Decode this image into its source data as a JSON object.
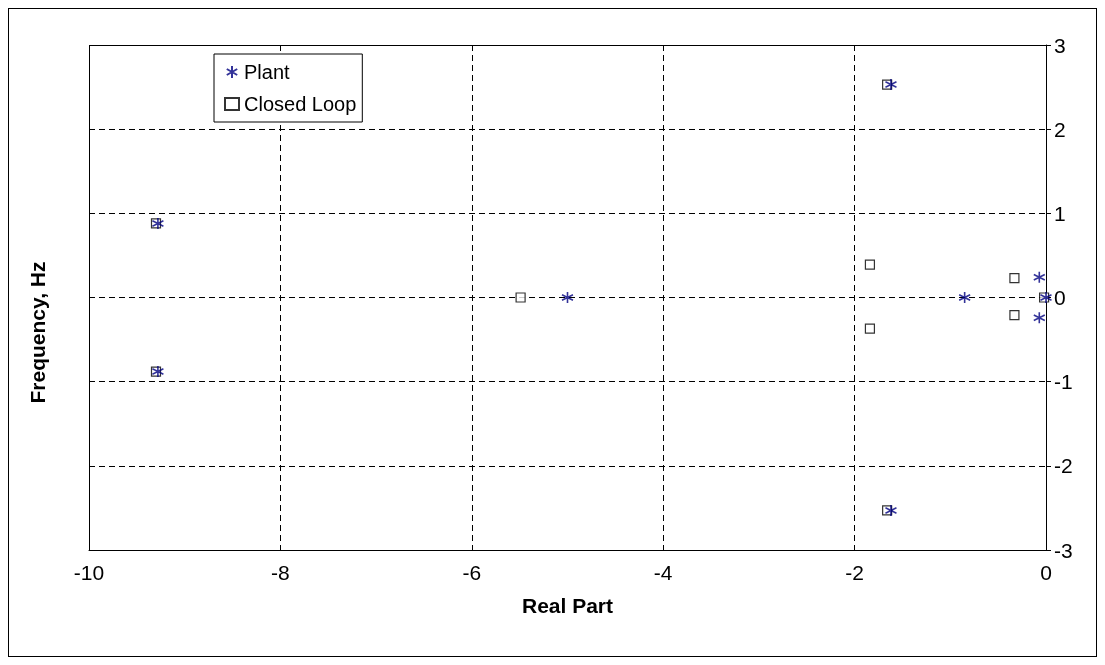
{
  "chart_data": {
    "type": "scatter",
    "xlabel": "Real Part",
    "ylabel": "Frequency, Hz",
    "xlim": [
      -10,
      0
    ],
    "xticks": [
      -10,
      -8,
      -6,
      -4,
      -2,
      0
    ],
    "ylim": [
      -3,
      3
    ],
    "yticks": [
      -3,
      -2,
      -1,
      0,
      1,
      2,
      3
    ],
    "grid": true,
    "legend": "top left",
    "series": [
      {
        "name": "Plant",
        "color": "#000080",
        "marker": "cross",
        "x": [
          -9.28,
          -9.28,
          -5.0,
          -1.62,
          -1.62,
          -0.85,
          -0.07,
          -0.07,
          0
        ],
        "values": [
          0.88,
          -0.88,
          0,
          2.53,
          -2.53,
          0,
          0.24,
          -0.24,
          0
        ]
      },
      {
        "name": "Closed Loop",
        "color": "#000000",
        "marker": "square",
        "x": [
          -9.3,
          -9.3,
          -5.49,
          -1.66,
          -1.66,
          -1.84,
          -1.84,
          -0.33,
          -0.33,
          -0.02
        ],
        "values": [
          0.88,
          -0.88,
          0,
          2.53,
          -2.53,
          0.39,
          -0.37,
          0.23,
          -0.21,
          0
        ]
      }
    ]
  }
}
